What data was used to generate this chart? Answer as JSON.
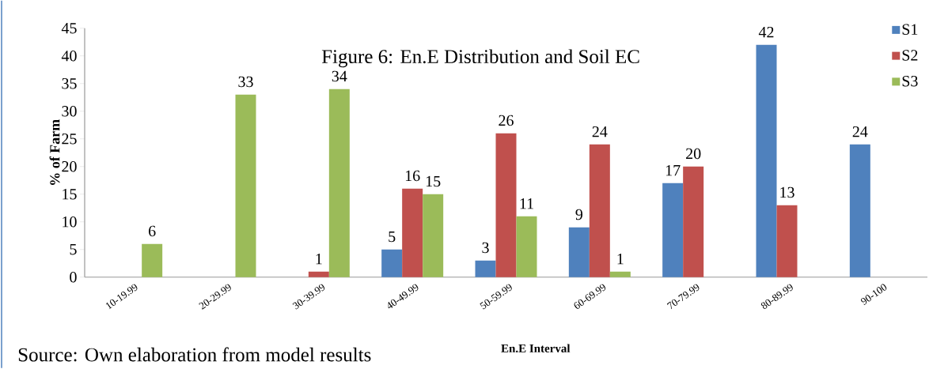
{
  "chart_data": {
    "type": "bar",
    "title": "Figure 6: En.E Distribution and Soil EC",
    "xlabel": "En.E Interval",
    "ylabel": "% of Farm",
    "categories": [
      "10-19.99",
      "20-29.99",
      "30-39.99",
      "40-49.99",
      "50-59.99",
      "60-69.99",
      "70-79.99",
      "80-89.99",
      "90-100"
    ],
    "series": [
      {
        "name": "S1",
        "color": "#4f81bd",
        "values": [
          null,
          null,
          null,
          5,
          3,
          9,
          17,
          42,
          24
        ]
      },
      {
        "name": "S2",
        "color": "#c0504d",
        "values": [
          null,
          null,
          1,
          16,
          26,
          24,
          20,
          13,
          null
        ]
      },
      {
        "name": "S3",
        "color": "#9bbb59",
        "values": [
          6,
          33,
          34,
          15,
          11,
          1,
          null,
          null,
          null
        ]
      }
    ],
    "ylim": [
      0,
      45
    ],
    "yticks": [
      0,
      5,
      10,
      15,
      20,
      25,
      30,
      35,
      40,
      45
    ],
    "data_labels": true,
    "legend": "top right",
    "annotations": [
      "Source: Own elaboration from model results"
    ]
  }
}
